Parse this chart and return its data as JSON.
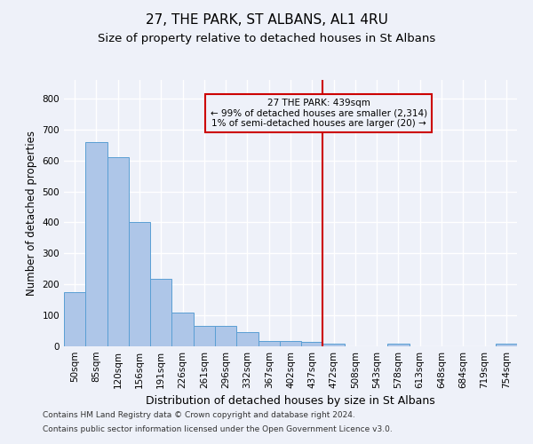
{
  "title": "27, THE PARK, ST ALBANS, AL1 4RU",
  "subtitle": "Size of property relative to detached houses in St Albans",
  "xlabel": "Distribution of detached houses by size in St Albans",
  "ylabel": "Number of detached properties",
  "footer1": "Contains HM Land Registry data © Crown copyright and database right 2024.",
  "footer2": "Contains public sector information licensed under the Open Government Licence v3.0.",
  "bar_labels": [
    "50sqm",
    "85sqm",
    "120sqm",
    "156sqm",
    "191sqm",
    "226sqm",
    "261sqm",
    "296sqm",
    "332sqm",
    "367sqm",
    "402sqm",
    "437sqm",
    "472sqm",
    "508sqm",
    "543sqm",
    "578sqm",
    "613sqm",
    "648sqm",
    "684sqm",
    "719sqm",
    "754sqm"
  ],
  "bar_values": [
    175,
    660,
    610,
    400,
    218,
    110,
    65,
    65,
    45,
    18,
    17,
    15,
    8,
    0,
    0,
    8,
    0,
    0,
    0,
    0,
    8
  ],
  "bar_color": "#aec6e8",
  "bar_edge_color": "#5a9fd4",
  "marker_index": 11,
  "marker_label": "27 THE PARK: 439sqm",
  "marker_line_color": "#cc0000",
  "annotation_line1": "← 99% of detached houses are smaller (2,314)",
  "annotation_line2": "1% of semi-detached houses are larger (20) →",
  "annotation_box_color": "#cc0000",
  "annotation_text_color": "#000000",
  "ylim": [
    0,
    860
  ],
  "yticks": [
    0,
    100,
    200,
    300,
    400,
    500,
    600,
    700,
    800
  ],
  "background_color": "#eef1f9",
  "grid_color": "#ffffff",
  "title_fontsize": 11,
  "subtitle_fontsize": 9.5,
  "tick_fontsize": 7.5,
  "ylabel_fontsize": 8.5,
  "xlabel_fontsize": 9
}
